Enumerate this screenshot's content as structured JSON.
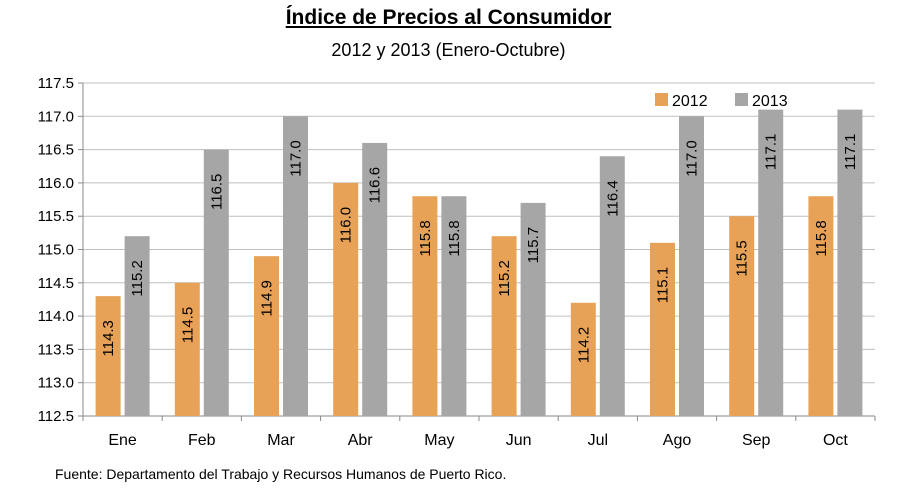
{
  "chart_data": {
    "type": "bar",
    "title": "Índice de Precios al Consumidor",
    "subtitle": "2012 y 2013 (Enero-Octubre)",
    "categories": [
      "Ene",
      "Feb",
      "Mar",
      "Abr",
      "May",
      "Jun",
      "Jul",
      "Ago",
      "Sep",
      "Oct"
    ],
    "series": [
      {
        "name": "2012",
        "color": "#E8A258",
        "values": [
          114.3,
          114.5,
          114.9,
          116.0,
          115.8,
          115.2,
          114.2,
          115.1,
          115.5,
          115.8
        ]
      },
      {
        "name": "2013",
        "color": "#A6A6A6",
        "values": [
          115.2,
          116.5,
          117.0,
          116.6,
          115.8,
          115.7,
          116.4,
          117.0,
          117.1,
          117.1
        ]
      }
    ],
    "ylim": [
      112.5,
      117.5
    ],
    "yticks": [
      "112.5",
      "113.0",
      "113.5",
      "114.0",
      "114.5",
      "115.0",
      "115.5",
      "116.0",
      "116.5",
      "117.0",
      "117.5"
    ],
    "grid": true,
    "legend": "top-right",
    "data_labels": "vertical, inside bar"
  },
  "source_note": "Fuente: Departamento del Trabajo y Recursos Humanos de Puerto Rico."
}
